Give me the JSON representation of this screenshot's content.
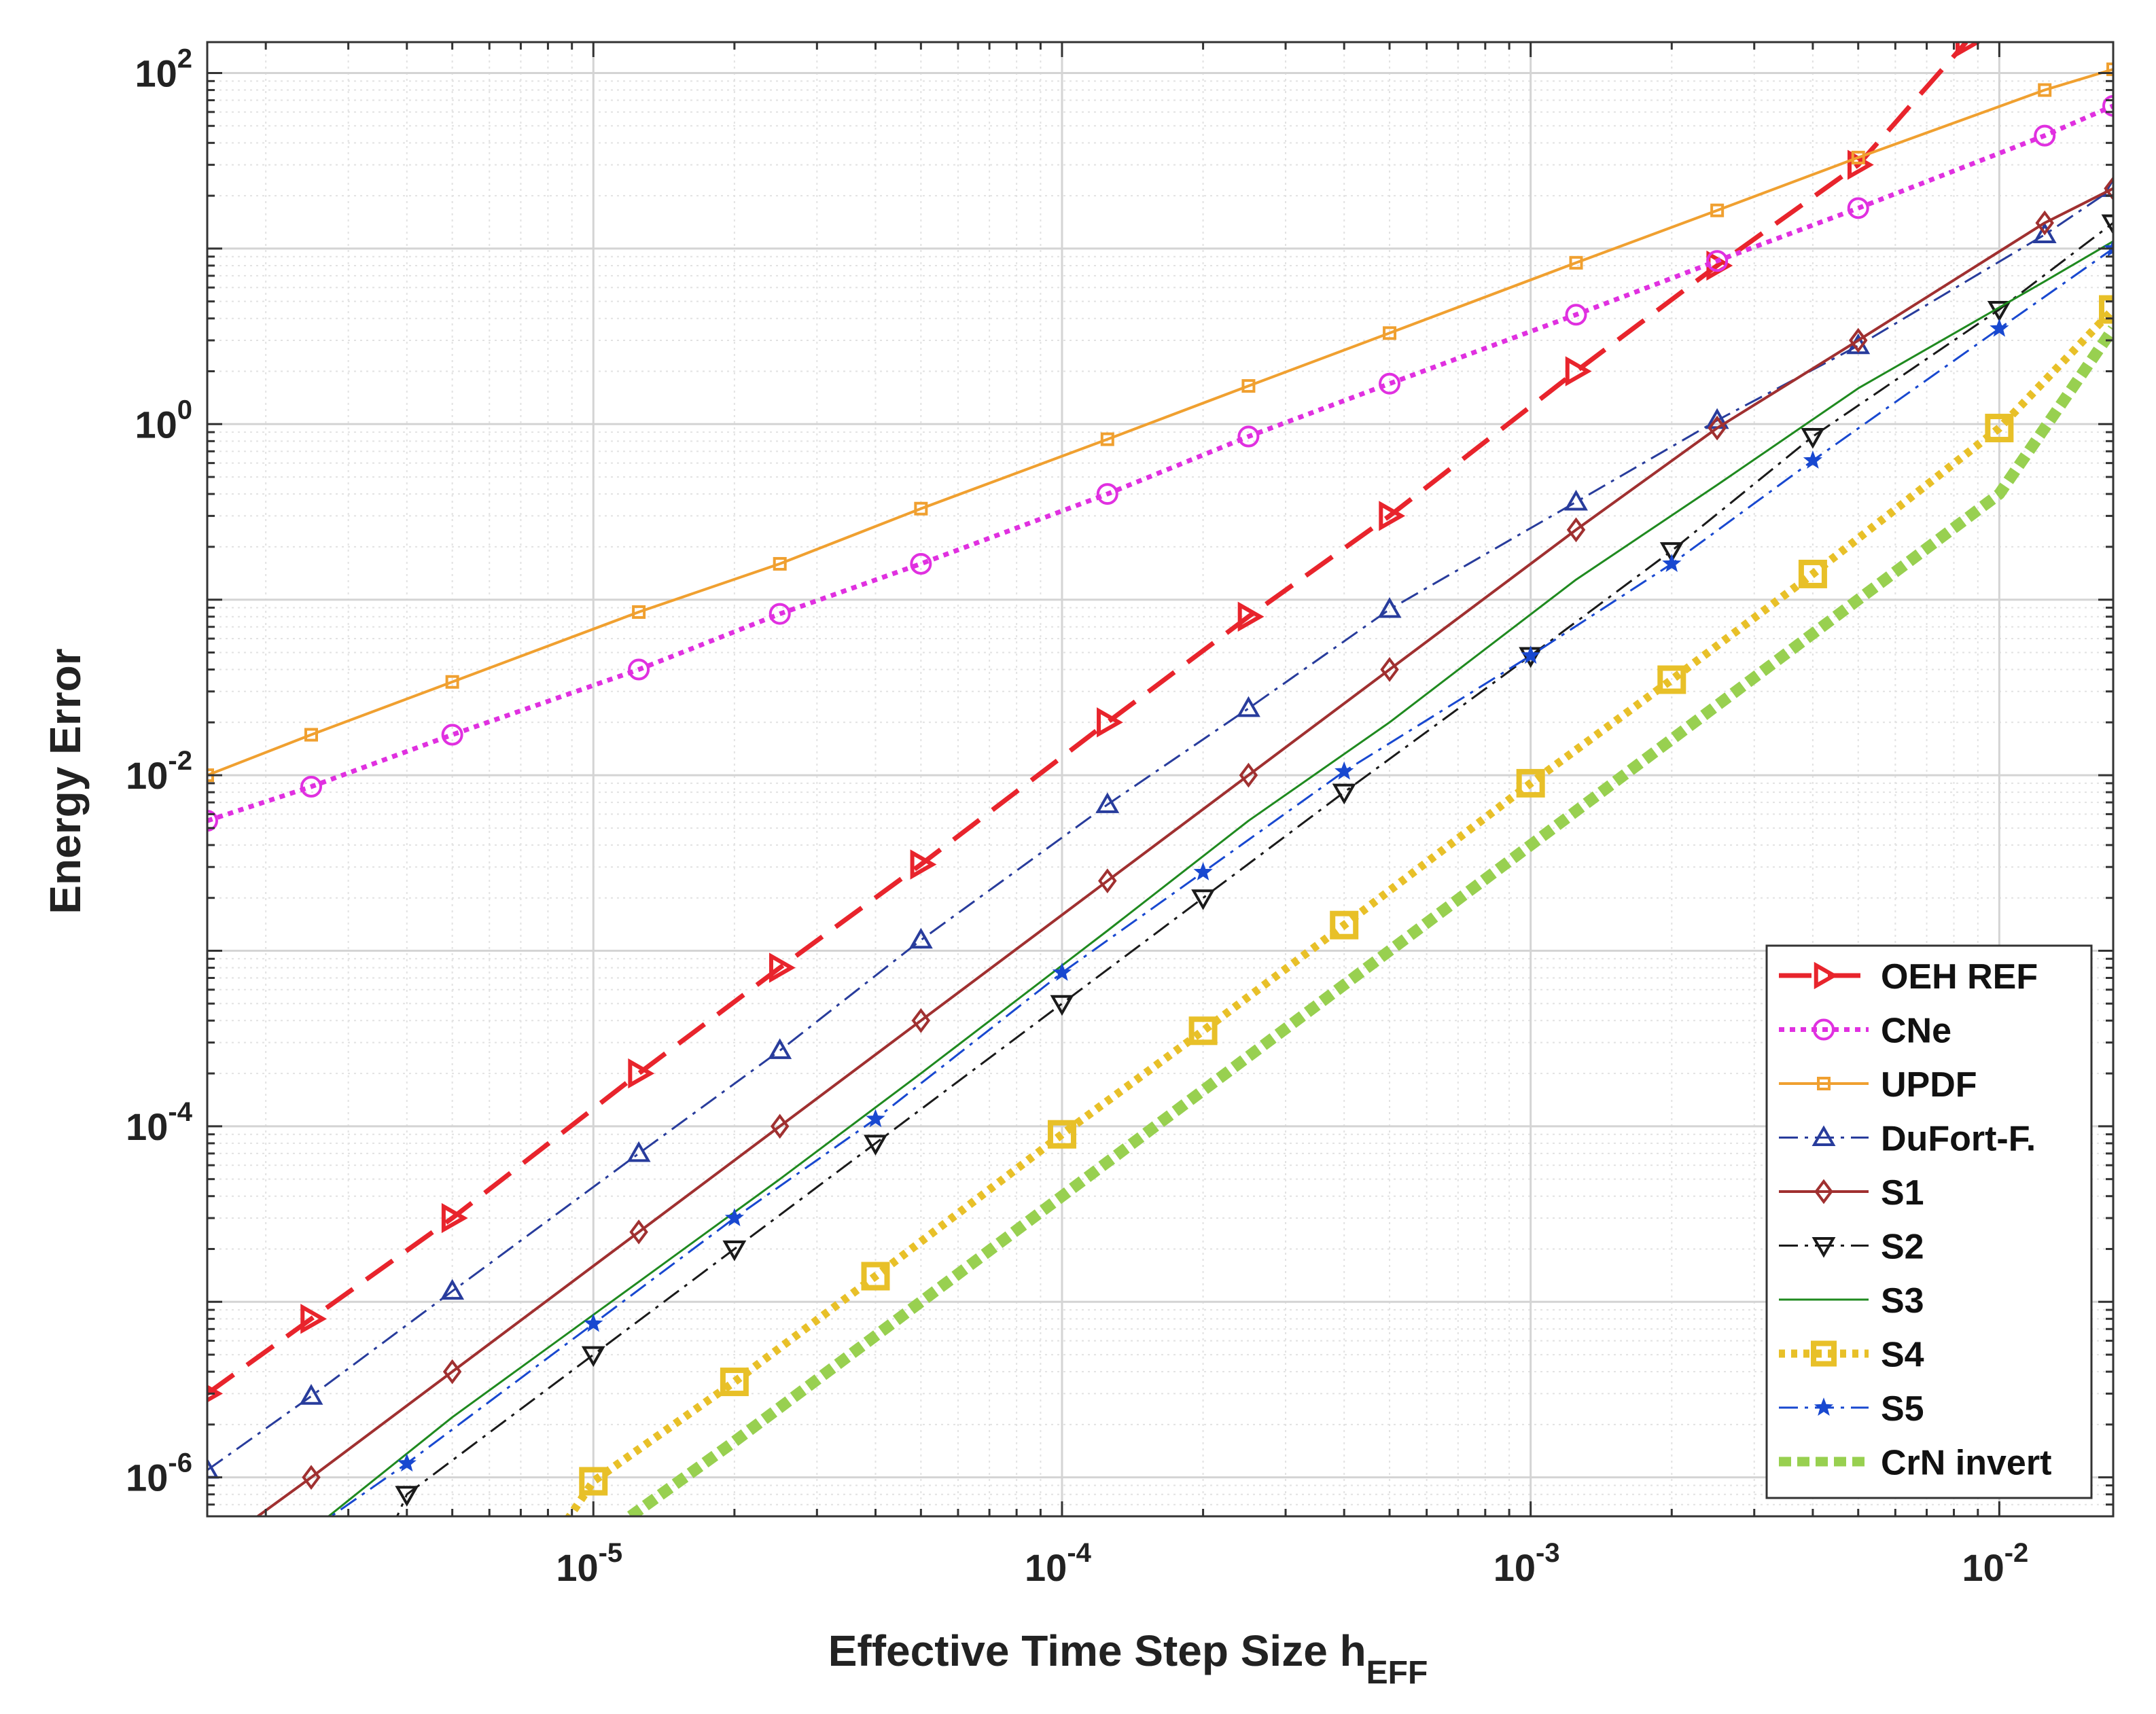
{
  "chart_data": {
    "type": "line",
    "xscale": "log",
    "yscale": "log",
    "xlim": [
      1.5e-06,
      0.0175
    ],
    "ylim": [
      6e-07,
      150
    ],
    "xlabel_main": "Effective Time Step Size h",
    "xlabel_sub": "EFF",
    "ylabel": "Energy Error",
    "grid": true,
    "minor_grid": true,
    "legend_position": "bottom-right",
    "x_ticks": [
      {
        "value": 1e-05,
        "base": "10",
        "exp": "-5"
      },
      {
        "value": 0.0001,
        "base": "10",
        "exp": "-4"
      },
      {
        "value": 0.001,
        "base": "10",
        "exp": "-3"
      },
      {
        "value": 0.01,
        "base": "10",
        "exp": "-2"
      }
    ],
    "y_ticks": [
      {
        "value": 1e-06,
        "base": "10",
        "exp": "-6"
      },
      {
        "value": 0.0001,
        "base": "10",
        "exp": "-4"
      },
      {
        "value": 0.01,
        "base": "10",
        "exp": "-2"
      },
      {
        "value": 1,
        "base": "10",
        "exp": "0"
      },
      {
        "value": 100,
        "base": "10",
        "exp": "2"
      }
    ],
    "series": [
      {
        "name": "OEH REF",
        "color": "#e8242c",
        "dash": "48,24",
        "width": 7,
        "marker": "triangle-right",
        "marker_size": 17,
        "points": [
          [
            1.5e-06,
            3e-06
          ],
          [
            2.5e-06,
            8e-06
          ],
          [
            5e-06,
            3e-05
          ],
          [
            1.25e-05,
            0.0002
          ],
          [
            2.5e-05,
            0.0008
          ],
          [
            5e-05,
            0.0031
          ],
          [
            0.000125,
            0.02
          ],
          [
            0.00025,
            0.08
          ],
          [
            0.0005,
            0.3
          ],
          [
            0.00125,
            2
          ],
          [
            0.0025,
            8
          ],
          [
            0.005,
            30
          ],
          [
            0.0085,
            150
          ]
        ]
      },
      {
        "name": "CNe",
        "color": "#e030e0",
        "dash": "8,8",
        "width": 7,
        "marker": "circle",
        "marker_size": 14,
        "points": [
          [
            1.5e-06,
            0.0055
          ],
          [
            2.5e-06,
            0.0086
          ],
          [
            5e-06,
            0.017
          ],
          [
            1.25e-05,
            0.04
          ],
          [
            2.5e-05,
            0.083
          ],
          [
            5e-05,
            0.16
          ],
          [
            0.000125,
            0.4
          ],
          [
            0.00025,
            0.85
          ],
          [
            0.0005,
            1.7
          ],
          [
            0.00125,
            4.2
          ],
          [
            0.0025,
            8.5
          ],
          [
            0.005,
            17
          ],
          [
            0.0125,
            44
          ],
          [
            0.0175,
            65
          ]
        ]
      },
      {
        "name": "UPDF",
        "color": "#f0a030",
        "dash": "",
        "width": 4,
        "marker": "square",
        "marker_size": 8,
        "points": [
          [
            1.5e-06,
            0.01
          ],
          [
            2.5e-06,
            0.017
          ],
          [
            5e-06,
            0.034
          ],
          [
            1.25e-05,
            0.085
          ],
          [
            2.5e-05,
            0.16
          ],
          [
            5e-05,
            0.33
          ],
          [
            0.000125,
            0.82
          ],
          [
            0.00025,
            1.65
          ],
          [
            0.0005,
            3.3
          ],
          [
            0.00125,
            8.3
          ],
          [
            0.0025,
            16.5
          ],
          [
            0.005,
            33
          ],
          [
            0.0125,
            80
          ],
          [
            0.0175,
            105
          ]
        ]
      },
      {
        "name": "DuFort-F.",
        "color": "#283c9c",
        "dash": "28,10,5,10",
        "width": 3,
        "marker": "triangle-up",
        "marker_size": 14,
        "points": [
          [
            1.5e-06,
            1.1e-06
          ],
          [
            2.5e-06,
            2.9e-06
          ],
          [
            5e-06,
            1.15e-05
          ],
          [
            1.25e-05,
            7e-05
          ],
          [
            2.5e-05,
            0.00027
          ],
          [
            5e-05,
            0.00115
          ],
          [
            0.000125,
            0.0068
          ],
          [
            0.00025,
            0.024
          ],
          [
            0.0005,
            0.088
          ],
          [
            0.00125,
            0.36
          ],
          [
            0.0025,
            1.05
          ],
          [
            0.005,
            2.8
          ],
          [
            0.0125,
            12
          ],
          [
            0.0175,
            22
          ]
        ]
      },
      {
        "name": "S1",
        "color": "#a03030",
        "dash": "",
        "width": 4,
        "marker": "diamond",
        "marker_size": 15,
        "points": [
          [
            1.75e-06,
            5e-07
          ],
          [
            2.5e-06,
            1e-06
          ],
          [
            5e-06,
            4e-06
          ],
          [
            1.25e-05,
            2.5e-05
          ],
          [
            2.5e-05,
            0.0001
          ],
          [
            5e-05,
            0.0004
          ],
          [
            0.000125,
            0.0025
          ],
          [
            0.00025,
            0.01
          ],
          [
            0.0005,
            0.04
          ],
          [
            0.00125,
            0.25
          ],
          [
            0.0025,
            0.95
          ],
          [
            0.005,
            3
          ],
          [
            0.0125,
            14
          ],
          [
            0.0175,
            22
          ]
        ]
      },
      {
        "name": "S2",
        "color": "#1a1a1a",
        "dash": "28,10,5,10",
        "width": 3,
        "marker": "triangle-down",
        "marker_size": 14,
        "points": [
          [
            3.7e-06,
            5e-07
          ],
          [
            4e-06,
            8e-07
          ],
          [
            1e-05,
            5e-06
          ],
          [
            2e-05,
            2e-05
          ],
          [
            4e-05,
            8e-05
          ],
          [
            0.0001,
            0.0005
          ],
          [
            0.0002,
            0.002
          ],
          [
            0.0004,
            0.008
          ],
          [
            0.001,
            0.048
          ],
          [
            0.002,
            0.19
          ],
          [
            0.004,
            0.85
          ],
          [
            0.01,
            4.5
          ],
          [
            0.0175,
            14
          ]
        ]
      },
      {
        "name": "S3",
        "color": "#1f8a1f",
        "dash": "",
        "width": 3,
        "marker": "none",
        "marker_size": 0,
        "points": [
          [
            2.5e-06,
            5e-07
          ],
          [
            5e-06,
            2.2e-06
          ],
          [
            1.25e-05,
            1.3e-05
          ],
          [
            2.5e-05,
            5e-05
          ],
          [
            5e-05,
            0.0002
          ],
          [
            0.000125,
            0.0013
          ],
          [
            0.00025,
            0.0055
          ],
          [
            0.0005,
            0.02
          ],
          [
            0.00125,
            0.13
          ],
          [
            0.0025,
            0.45
          ],
          [
            0.005,
            1.6
          ],
          [
            0.0125,
            6.5
          ],
          [
            0.0175,
            11
          ]
        ]
      },
      {
        "name": "S4",
        "color": "#e8c028",
        "dash": "9,9",
        "width": 12,
        "marker": "square",
        "marker_size": 17,
        "points": [
          [
            8.5e-06,
            5e-07
          ],
          [
            1e-05,
            9.5e-07
          ],
          [
            2e-05,
            3.5e-06
          ],
          [
            4e-05,
            1.4e-05
          ],
          [
            0.0001,
            9e-05
          ],
          [
            0.0002,
            0.00035
          ],
          [
            0.0004,
            0.0014
          ],
          [
            0.001,
            0.009
          ],
          [
            0.002,
            0.035
          ],
          [
            0.004,
            0.14
          ],
          [
            0.01,
            0.95
          ],
          [
            0.0175,
            4.5
          ]
        ]
      },
      {
        "name": "S5",
        "color": "#1848d0",
        "dash": "28,10,5,10",
        "width": 3,
        "marker": "star",
        "marker_size": 12,
        "points": [
          [
            2.5e-06,
            5e-07
          ],
          [
            4e-06,
            1.2e-06
          ],
          [
            1e-05,
            7.5e-06
          ],
          [
            2e-05,
            3e-05
          ],
          [
            4e-05,
            0.00011
          ],
          [
            0.0001,
            0.00075
          ],
          [
            0.0002,
            0.0028
          ],
          [
            0.0004,
            0.0105
          ],
          [
            0.001,
            0.048
          ],
          [
            0.002,
            0.16
          ],
          [
            0.004,
            0.62
          ],
          [
            0.01,
            3.5
          ],
          [
            0.0175,
            10
          ]
        ]
      },
      {
        "name": "CrN invert",
        "color": "#98d050",
        "dash": "18,9",
        "width": 17,
        "marker": "none",
        "marker_size": 0,
        "points": [
          [
            1.2e-05,
            6e-07
          ],
          [
            2e-05,
            1.6e-06
          ],
          [
            4e-05,
            6.4e-06
          ],
          [
            0.0001,
            4e-05
          ],
          [
            0.0002,
            0.00016
          ],
          [
            0.0004,
            0.00064
          ],
          [
            0.001,
            0.004
          ],
          [
            0.002,
            0.016
          ],
          [
            0.004,
            0.064
          ],
          [
            0.01,
            0.4
          ],
          [
            0.0175,
            3.5
          ]
        ]
      }
    ]
  }
}
